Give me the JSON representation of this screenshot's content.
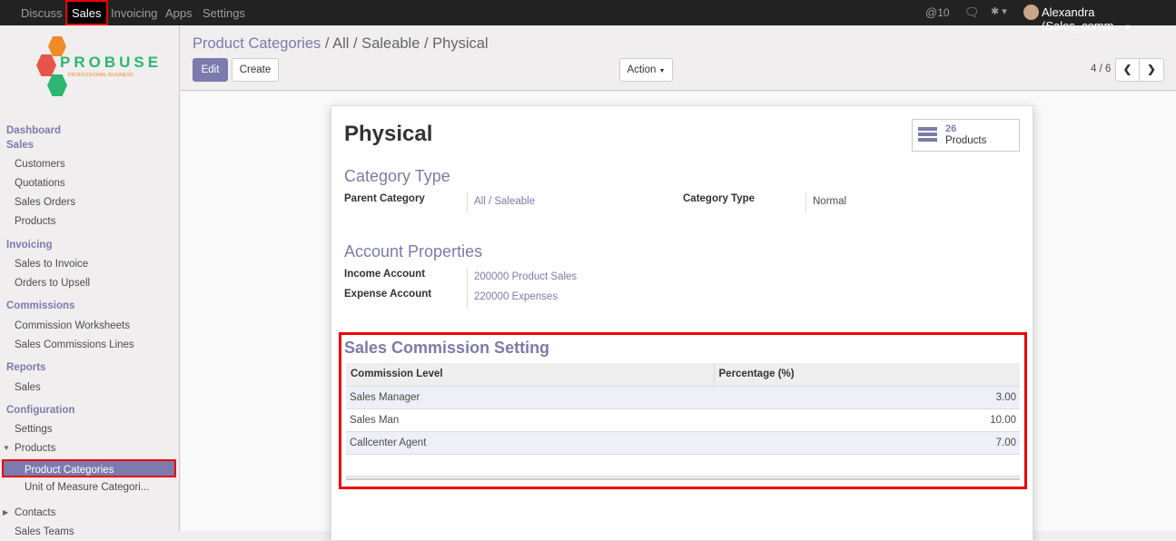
{
  "topbar": {
    "apps": [
      "Discuss",
      "Sales",
      "Invoicing",
      "Apps",
      "Settings"
    ],
    "active_app": "Sales",
    "mentions": "10",
    "user": "Alexandra (Sales_comm.."
  },
  "logo": {
    "text": "PROBUSE",
    "tagline": "PROFESSIONAL BUSINESS"
  },
  "sidebar": {
    "items": [
      {
        "label": "Dashboard",
        "type": "h"
      },
      {
        "label": "Sales",
        "type": "h"
      },
      {
        "label": "Customers",
        "type": "i"
      },
      {
        "label": "Quotations",
        "type": "i"
      },
      {
        "label": "Sales Orders",
        "type": "i"
      },
      {
        "label": "Products",
        "type": "i"
      },
      {
        "label": "Invoicing",
        "type": "h"
      },
      {
        "label": "Sales to Invoice",
        "type": "i"
      },
      {
        "label": "Orders to Upsell",
        "type": "i"
      },
      {
        "label": "Commissions",
        "type": "h"
      },
      {
        "label": "Commission Worksheets",
        "type": "i"
      },
      {
        "label": "Sales Commissions Lines",
        "type": "i"
      },
      {
        "label": "Reports",
        "type": "h"
      },
      {
        "label": "Sales",
        "type": "i"
      },
      {
        "label": "Configuration",
        "type": "h"
      },
      {
        "label": "Settings",
        "type": "i"
      },
      {
        "label": "Products",
        "type": "i"
      },
      {
        "label": "Product Categories",
        "type": "active"
      },
      {
        "label": "Unit of Measure Categori...",
        "type": "i2"
      },
      {
        "label": "Contacts",
        "type": "i"
      },
      {
        "label": "Sales Teams",
        "type": "i"
      }
    ]
  },
  "control": {
    "breadcrumb_root": "Product Categories",
    "breadcrumb_current": "All / Saleable / Physical",
    "edit": "Edit",
    "create": "Create",
    "action": "Action",
    "pager": "4 / 6"
  },
  "record": {
    "title": "Physical",
    "products_count": "26",
    "products_label": "Products",
    "category_type_heading": "Category Type",
    "parent_category_label": "Parent Category",
    "parent_category": "All / Saleable",
    "category_type_label": "Category Type",
    "category_type": "Normal",
    "account_heading": "Account Properties",
    "income_label": "Income Account",
    "income": "200000 Product Sales",
    "expense_label": "Expense Account",
    "expense": "220000 Expenses",
    "commission_heading": "Sales Commission Setting",
    "commission_columns": [
      "Commission Level",
      "Percentage (%)"
    ],
    "commission_rows": [
      {
        "level": "Sales Manager",
        "pct": "3.00"
      },
      {
        "level": "Sales Man",
        "pct": "10.00"
      },
      {
        "level": "Callcenter Agent",
        "pct": "7.00"
      }
    ]
  },
  "colors": {
    "accent": "#7c7bad",
    "highlight": "#ee0000",
    "topbar": "#222222"
  }
}
